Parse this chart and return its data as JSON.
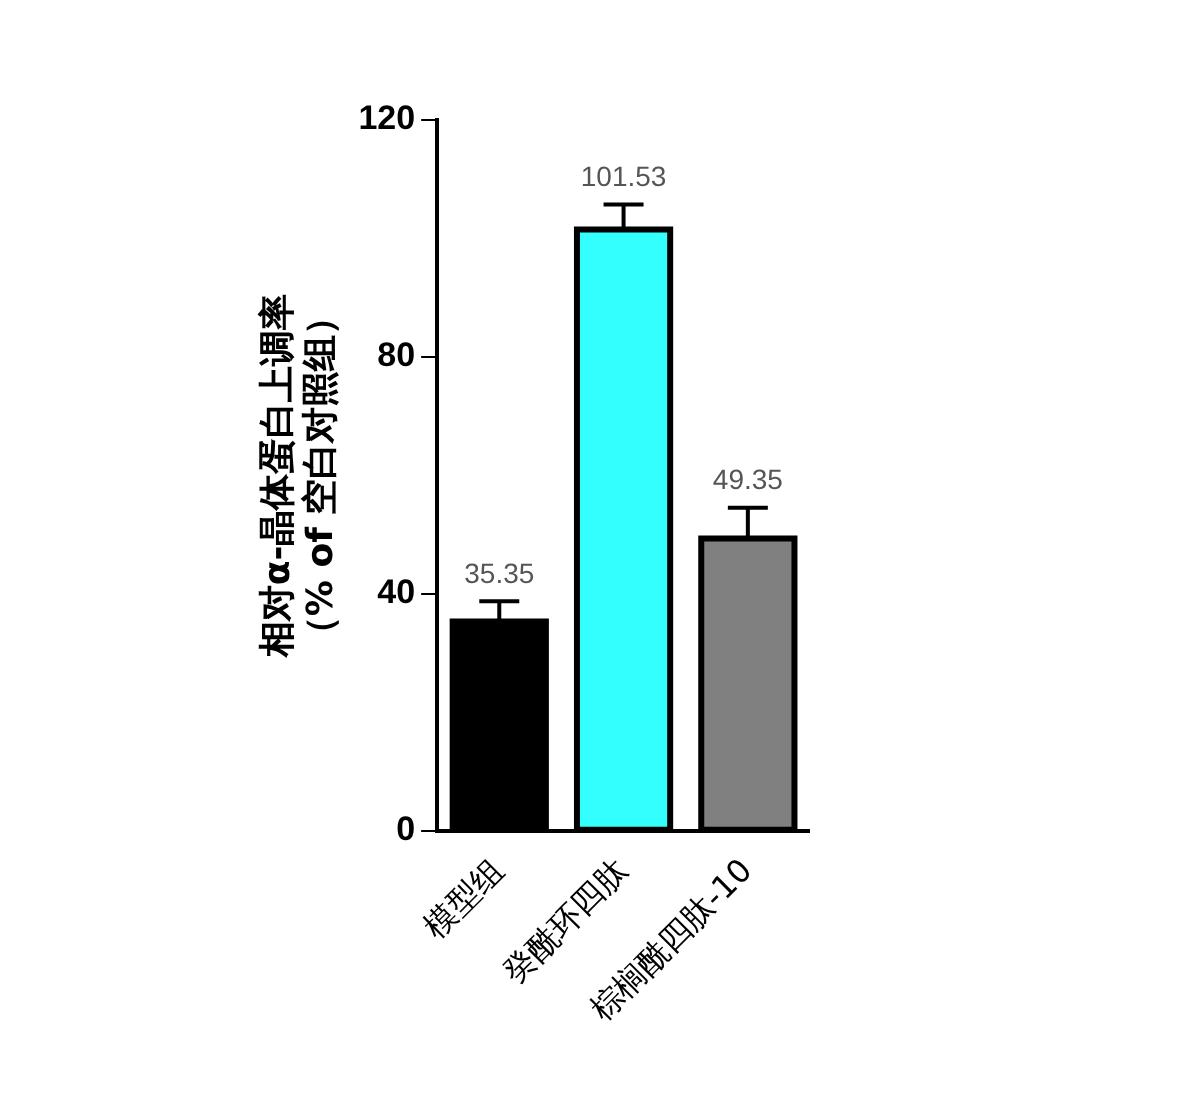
{
  "chart_data": {
    "type": "bar",
    "ylabel": "相对α-晶体蛋白上调率（% of 空白对照组）",
    "categories": [
      "模型组",
      "癸酰环四肽",
      "棕榈酰四肽-10"
    ],
    "values": [
      35.35,
      101.53,
      49.35
    ],
    "colors": [
      "#000000",
      "#33ffff",
      "#808080"
    ],
    "errors": [
      3.4,
      4.2,
      5.2
    ],
    "ylim": [
      0,
      120
    ],
    "yticks": [
      0,
      40,
      80,
      120
    ],
    "grid": false,
    "legend": false,
    "data_labels": true
  }
}
